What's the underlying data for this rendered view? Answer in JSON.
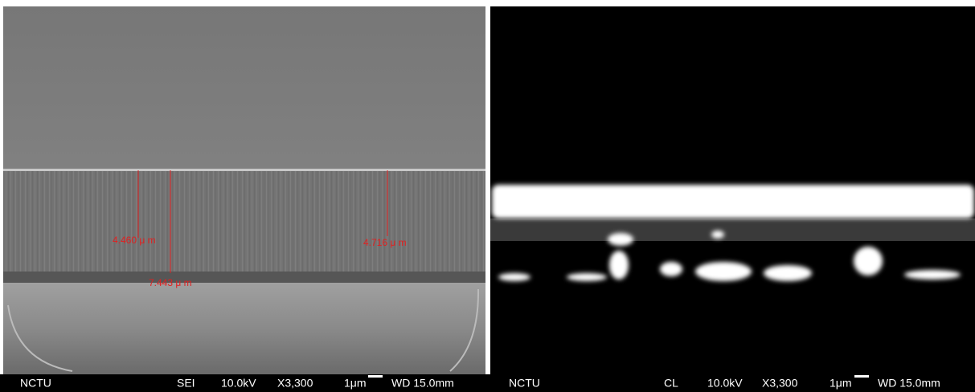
{
  "panels": [
    {
      "info_bar": {
        "org": "NCTU",
        "detector": "SEI",
        "voltage": "10.0kV",
        "magnification": "X3,300",
        "scale": "1μm",
        "working_distance": "WD 15.0mm"
      },
      "measurements": [
        "4.460 μ m",
        "7.443 μ m",
        "4.716 μ m"
      ]
    },
    {
      "info_bar": {
        "org": "NCTU",
        "detector": "CL",
        "voltage": "10.0kV",
        "magnification": "X3,300",
        "scale": "1μm",
        "working_distance": "WD 15.0mm"
      }
    }
  ]
}
